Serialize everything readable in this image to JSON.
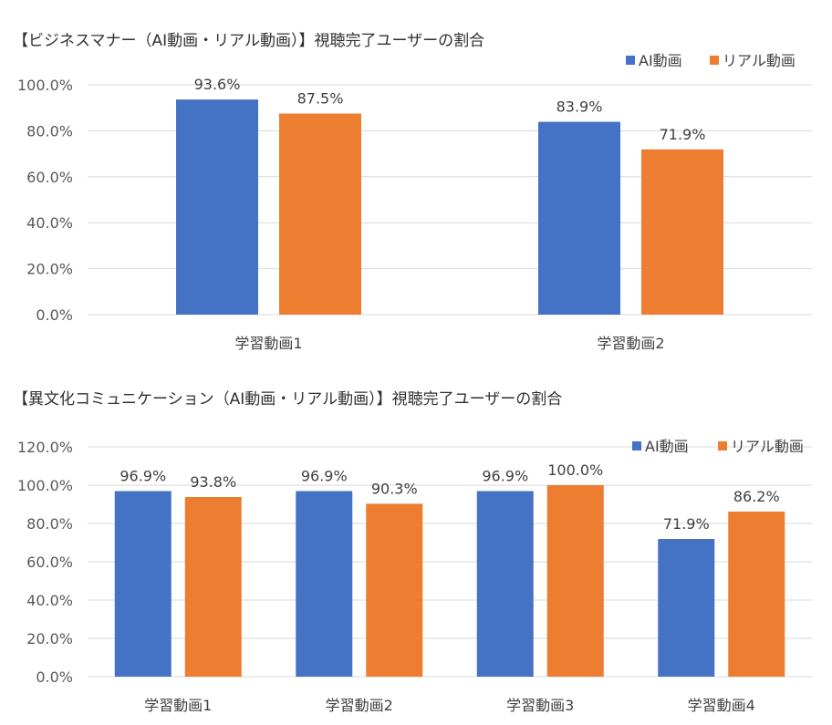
{
  "chart_data": [
    {
      "type": "bar",
      "title": "【ビジネスマナー（AI動画・リアル動画）】視聴完了ユーザーの割合",
      "categories": [
        "学習動画1",
        "学習動画2"
      ],
      "series": [
        {
          "name": "AI動画",
          "values": [
            93.6,
            83.9
          ],
          "color": "#4472C4"
        },
        {
          "name": "リアル動画",
          "values": [
            87.5,
            71.9
          ],
          "color": "#ED7D31"
        }
      ],
      "data_labels": [
        [
          "93.6%",
          "83.9%"
        ],
        [
          "87.5%",
          "71.9%"
        ]
      ],
      "yticks": [
        "0.0%",
        "20.0%",
        "40.0%",
        "60.0%",
        "80.0%",
        "100.0%"
      ],
      "ylim": [
        0,
        100
      ],
      "grid": true,
      "legend": "top-right"
    },
    {
      "type": "bar",
      "title": "【異文化コミュニケーション（AI動画・リアル動画）】視聴完了ユーザーの割合",
      "categories": [
        "学習動画1",
        "学習動画2",
        "学習動画3",
        "学習動画4"
      ],
      "series": [
        {
          "name": "AI動画",
          "values": [
            96.9,
            96.9,
            96.9,
            71.9
          ],
          "color": "#4472C4"
        },
        {
          "name": "リアル動画",
          "values": [
            93.8,
            90.3,
            100.0,
            86.2
          ],
          "color": "#ED7D31"
        }
      ],
      "data_labels": [
        [
          "96.9%",
          "96.9%",
          "96.9%",
          "71.9%"
        ],
        [
          "93.8%",
          "90.3%",
          "100.0%",
          "86.2%"
        ]
      ],
      "yticks": [
        "0.0%",
        "20.0%",
        "40.0%",
        "60.0%",
        "80.0%",
        "100.0%",
        "120.0%"
      ],
      "ylim": [
        0,
        120
      ],
      "grid": true,
      "legend": "top-right"
    }
  ]
}
